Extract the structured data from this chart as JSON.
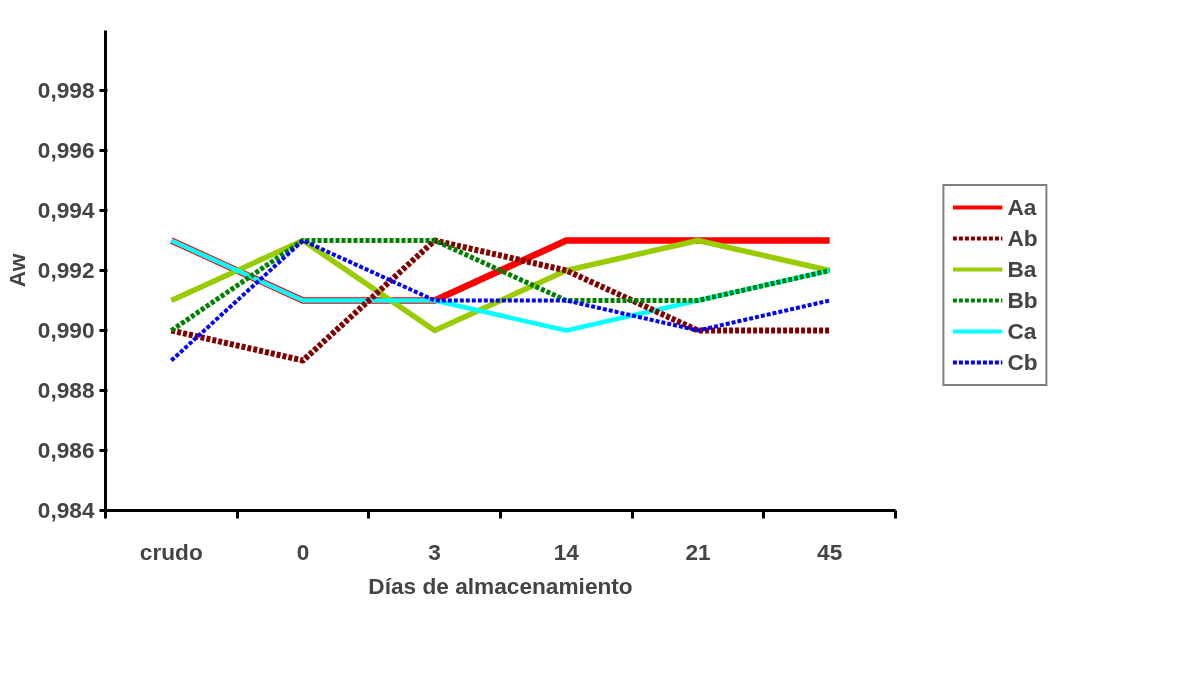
{
  "chart_data": {
    "type": "line",
    "xlabel": "Días de almacenamiento",
    "ylabel": "Aw",
    "categories": [
      "crudo",
      "0",
      "3",
      "14",
      "21",
      "45"
    ],
    "ylim": [
      0.984,
      1.0
    ],
    "yticks": [
      {
        "value": 0.984,
        "label": "0,984"
      },
      {
        "value": 0.986,
        "label": "0,986"
      },
      {
        "value": 0.988,
        "label": "0,988"
      },
      {
        "value": 0.99,
        "label": "0,990"
      },
      {
        "value": 0.992,
        "label": "0,992"
      },
      {
        "value": 0.994,
        "label": "0,994"
      },
      {
        "value": 0.996,
        "label": "0,996"
      },
      {
        "value": 0.998,
        "label": "0,998"
      }
    ],
    "grid": false,
    "legend": "right",
    "marker": "none",
    "series": [
      {
        "name": "Aa",
        "color": "#ff0000",
        "line_style": "solid",
        "values": [
          0.993,
          0.991,
          0.991,
          0.993,
          0.993,
          0.993
        ]
      },
      {
        "name": "Ab",
        "color": "#800000",
        "line_style": "dashed",
        "values": [
          0.99,
          0.989,
          0.993,
          0.992,
          0.99,
          0.99
        ]
      },
      {
        "name": "Ba",
        "color": "#99cc00",
        "line_style": "solid",
        "values": [
          0.991,
          0.993,
          0.99,
          0.992,
          0.993,
          0.992
        ]
      },
      {
        "name": "Bb",
        "color": "#008000",
        "line_style": "dashed",
        "values": [
          0.99,
          0.993,
          0.993,
          0.991,
          0.991,
          0.992
        ]
      },
      {
        "name": "Ca",
        "color": "#00ffff",
        "line_style": "solid",
        "values": [
          0.993,
          0.991,
          0.991,
          0.99,
          0.991,
          0.992
        ]
      },
      {
        "name": "Cb",
        "color": "#0000ff",
        "line_style": "dashed",
        "values": [
          0.989,
          0.993,
          0.991,
          0.991,
          0.99,
          0.991
        ]
      }
    ]
  }
}
